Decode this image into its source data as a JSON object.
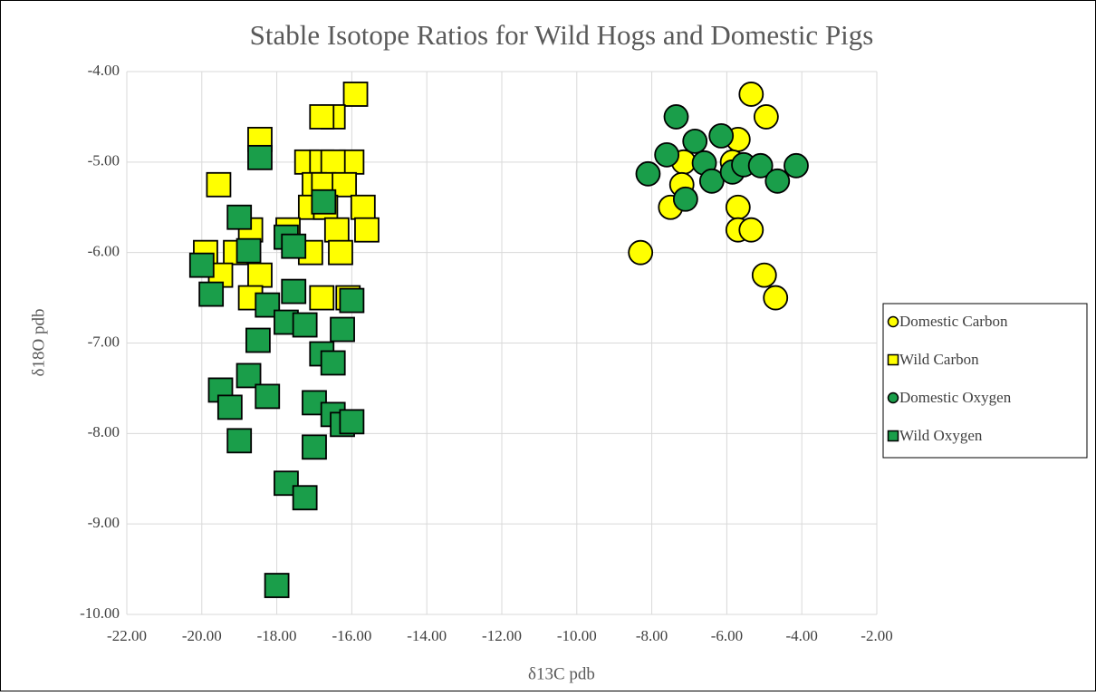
{
  "chart_data": {
    "type": "scatter",
    "title": "Stable Isotope Ratios for Wild Hogs and Domestic Pigs",
    "x_label": "δ13C pdb",
    "y_label": "δ18O pdb",
    "xlim": [
      -22,
      -2
    ],
    "ylim": [
      -10,
      -4
    ],
    "grid": true,
    "legend": "right",
    "xticks": [
      {
        "value": -22,
        "label": "-22.00"
      },
      {
        "value": -20,
        "label": "-20.00"
      },
      {
        "value": -18,
        "label": "-18.00"
      },
      {
        "value": -16,
        "label": "-16.00"
      },
      {
        "value": -14,
        "label": "-14.00"
      },
      {
        "value": -12,
        "label": "-12.00"
      },
      {
        "value": -10,
        "label": "-10.00"
      },
      {
        "value": -8,
        "label": "-8.00"
      },
      {
        "value": -6,
        "label": "-6.00"
      },
      {
        "value": -4,
        "label": "-4.00"
      },
      {
        "value": -2,
        "label": "-2.00"
      }
    ],
    "yticks": [
      {
        "value": -10,
        "label": "-10.00"
      },
      {
        "value": -9,
        "label": "-9.00"
      },
      {
        "value": -8,
        "label": "-8.00"
      },
      {
        "value": -7,
        "label": "-7.00"
      },
      {
        "value": -6,
        "label": "-6.00"
      },
      {
        "value": -5,
        "label": "-5.00"
      },
      {
        "value": -4,
        "label": "-4.00"
      }
    ],
    "series": [
      {
        "name": "Domestic Carbon",
        "color": "#ffff00",
        "marker": "circle",
        "x": [
          -5.35,
          -4.95,
          -5.7,
          -7.15,
          -5.85,
          -7.2,
          -7.5,
          -5.7,
          -5.7,
          -5.35,
          -8.3,
          -5.0,
          -4.7
        ],
        "y": [
          -4.25,
          -4.5,
          -4.75,
          -5.0,
          -5.0,
          -5.25,
          -5.5,
          -5.5,
          -5.75,
          -5.75,
          -6.0,
          -6.25,
          -6.5
        ]
      },
      {
        "name": "Wild Carbon",
        "color": "#ffff00",
        "marker": "square",
        "x": [
          -15.9,
          -16.5,
          -16.8,
          -18.45,
          -17.2,
          -16.8,
          -16.0,
          -16.5,
          -19.55,
          -17.0,
          -16.75,
          -16.2,
          -17.1,
          -15.7,
          -16.7,
          -18.7,
          -17.7,
          -16.4,
          -15.6,
          -19.9,
          -19.1,
          -17.1,
          -16.3,
          -19.5,
          -18.45,
          -18.7,
          -16.8,
          -16.1
        ],
        "y": [
          -4.25,
          -4.5,
          -4.5,
          -4.75,
          -5.0,
          -5.0,
          -5.0,
          -5.0,
          -5.25,
          -5.25,
          -5.25,
          -5.25,
          -5.5,
          -5.5,
          -5.5,
          -5.75,
          -5.75,
          -5.75,
          -5.75,
          -6.0,
          -6.0,
          -6.0,
          -6.0,
          -6.25,
          -6.25,
          -6.5,
          -6.5,
          -6.5
        ]
      },
      {
        "name": "Domestic Oxygen",
        "color": "#1a9e4a",
        "marker": "circle",
        "x": [
          -8.1,
          -7.35,
          -7.6,
          -6.85,
          -7.1,
          -6.6,
          -6.4,
          -6.15,
          -5.85,
          -5.55,
          -5.1,
          -4.65,
          -4.15
        ],
        "y": [
          -5.13,
          -4.5,
          -4.92,
          -4.77,
          -5.41,
          -5.01,
          -5.21,
          -4.71,
          -5.11,
          -5.03,
          -5.04,
          -5.21,
          -5.04
        ]
      },
      {
        "name": "Wild Oxygen",
        "color": "#1a9e4a",
        "marker": "square",
        "x": [
          -18.45,
          -19.0,
          -16.75,
          -18.75,
          -17.75,
          -17.55,
          -20.0,
          -19.75,
          -17.55,
          -18.25,
          -16.0,
          -17.75,
          -17.25,
          -16.25,
          -18.5,
          -16.8,
          -16.5,
          -18.75,
          -19.5,
          -19.25,
          -18.25,
          -17.0,
          -16.5,
          -16.25,
          -16.0,
          -19.0,
          -17.0,
          -17.75,
          -17.25,
          -18.0
        ],
        "y": [
          -4.95,
          -5.61,
          -5.44,
          -5.98,
          -5.83,
          -5.93,
          -6.14,
          -6.46,
          -6.43,
          -6.58,
          -6.53,
          -6.77,
          -6.8,
          -6.85,
          -6.97,
          -7.12,
          -7.22,
          -7.36,
          -7.52,
          -7.71,
          -7.59,
          -7.66,
          -7.79,
          -7.9,
          -7.87,
          -8.08,
          -8.15,
          -8.55,
          -8.71,
          -9.68
        ]
      }
    ]
  }
}
